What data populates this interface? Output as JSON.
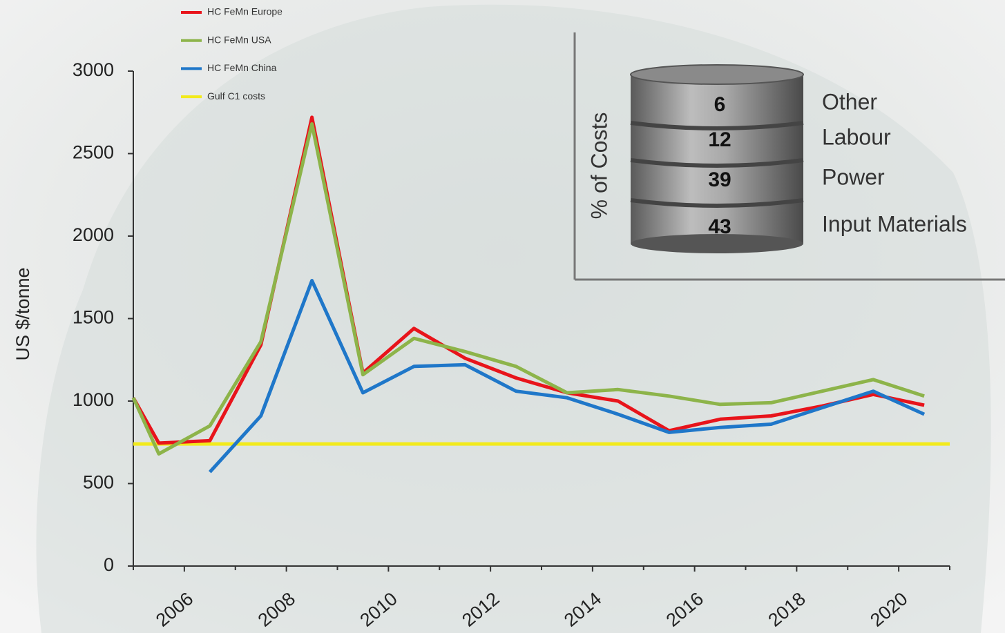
{
  "chart_data": {
    "type": "line",
    "y_label": "US $/tonne",
    "x": [
      2005,
      2005.5,
      2006.5,
      2007.5,
      2008.5,
      2009.5,
      2010.5,
      2011.5,
      2012.5,
      2013.5,
      2014.5,
      2015.5,
      2016.5,
      2017.5,
      2018.5,
      2019.5,
      2020.5
    ],
    "series": [
      {
        "name": "HC FeMn Europe",
        "color": "#e8141b",
        "values": [
          1020,
          745,
          760,
          1340,
          2720,
          1170,
          1440,
          1260,
          1140,
          1050,
          1000,
          820,
          890,
          910,
          970,
          1040,
          975
        ]
      },
      {
        "name": "HC FeMn USA",
        "color": "#8db44a",
        "values": [
          1020,
          680,
          850,
          1360,
          2680,
          1160,
          1380,
          1300,
          1210,
          1050,
          1070,
          1030,
          980,
          990,
          1060,
          1130,
          1030
        ]
      },
      {
        "name": "HC FeMn China",
        "color": "#1f77c9",
        "values": [
          null,
          null,
          570,
          910,
          1730,
          1050,
          1210,
          1220,
          1060,
          1020,
          920,
          810,
          840,
          860,
          960,
          1060,
          920
        ]
      },
      {
        "name": "Gulf C1 costs",
        "color": "#f2ea1c",
        "x": [
          2005,
          2021
        ],
        "values": [
          740,
          740
        ]
      }
    ],
    "xlim": [
      2005,
      2021
    ],
    "xticks": [
      2006,
      2008,
      2010,
      2012,
      2014,
      2016,
      2018,
      2020
    ],
    "xminorticks": [
      2005,
      2007,
      2009,
      2011,
      2013,
      2015,
      2017,
      2019,
      2021
    ],
    "ylim": [
      0,
      3000
    ],
    "yticks": [
      0,
      500,
      1000,
      1500,
      2000,
      2500,
      3000
    ],
    "inset": {
      "axis_label": "% of Costs",
      "segments": [
        {
          "label": "Other",
          "value": 6
        },
        {
          "label": "Labour",
          "value": 12
        },
        {
          "label": "Power",
          "value": 39
        },
        {
          "label": "Input Materials",
          "value": 43
        }
      ]
    }
  }
}
